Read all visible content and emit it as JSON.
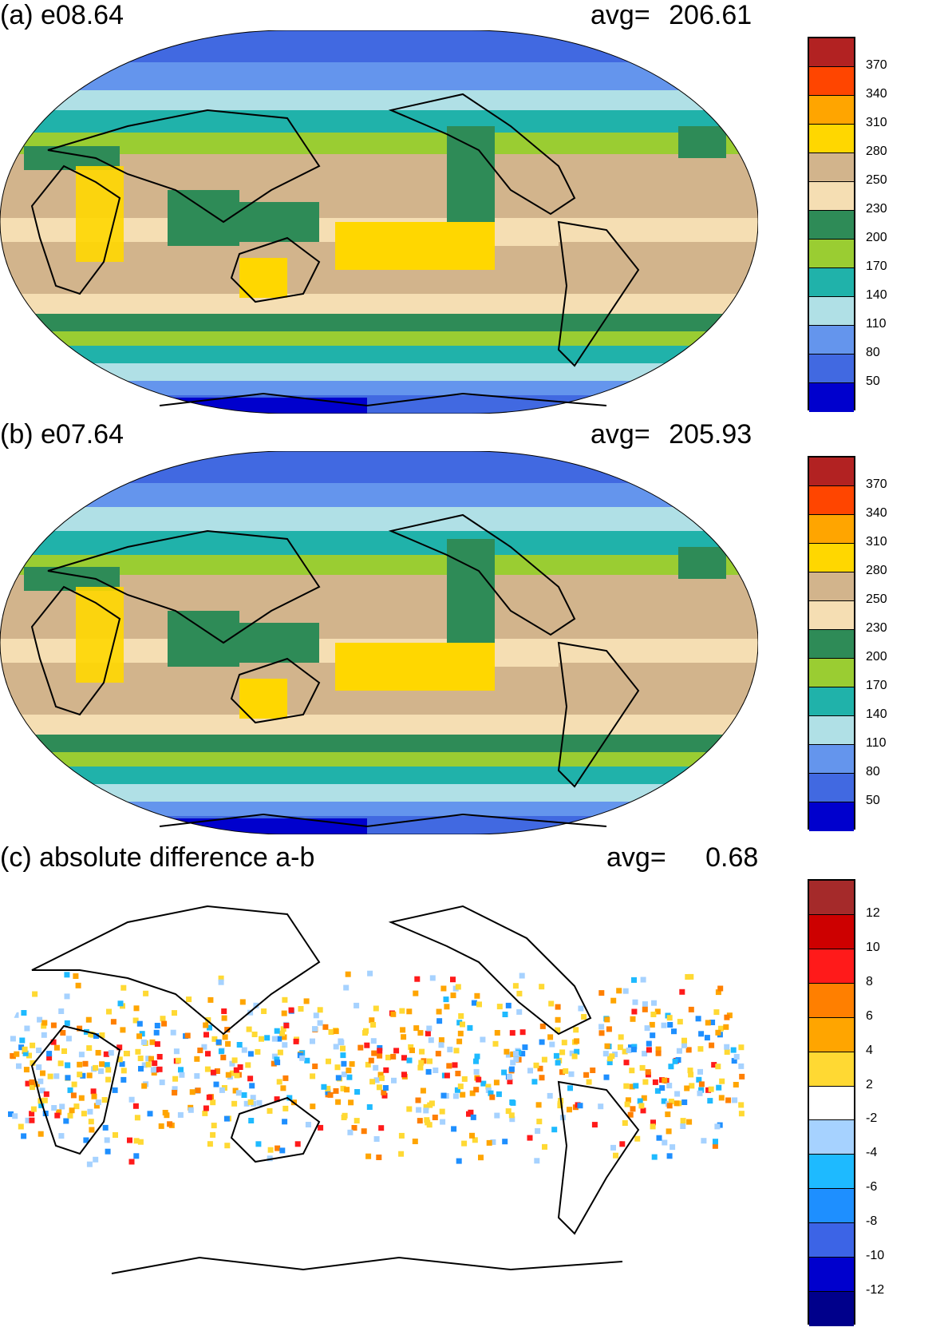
{
  "panels": [
    {
      "id": "a",
      "title": "(a) e08.64",
      "avg_label": "avg=",
      "avg_value": "206.61",
      "colorbar": {
        "colors": [
          "#b22222",
          "#ff4500",
          "#ffa500",
          "#ffd700",
          "#d2b48c",
          "#f5deb3",
          "#2e8b57",
          "#9acd32",
          "#20b2aa",
          "#b0e0e6",
          "#6495ed",
          "#4169e1",
          "#0000cd"
        ],
        "ticks": [
          "370",
          "340",
          "310",
          "280",
          "250",
          "230",
          "200",
          "170",
          "140",
          "110",
          "80",
          "50"
        ]
      }
    },
    {
      "id": "b",
      "title": "(b) e07.64",
      "avg_label": "avg=",
      "avg_value": "205.93",
      "colorbar": {
        "colors": [
          "#b22222",
          "#ff4500",
          "#ffa500",
          "#ffd700",
          "#d2b48c",
          "#f5deb3",
          "#2e8b57",
          "#9acd32",
          "#20b2aa",
          "#b0e0e6",
          "#6495ed",
          "#4169e1",
          "#0000cd"
        ],
        "ticks": [
          "370",
          "340",
          "310",
          "280",
          "250",
          "230",
          "200",
          "170",
          "140",
          "110",
          "80",
          "50"
        ]
      }
    },
    {
      "id": "c",
      "title": "(c) absolute difference a-b",
      "avg_label": "avg=",
      "avg_value": "0.68",
      "colorbar": {
        "colors": [
          "#a52a2a",
          "#cd0000",
          "#ff1a1a",
          "#ff7f00",
          "#ffa500",
          "#ffd933",
          "#ffffff",
          "#a6d2ff",
          "#1ebaff",
          "#1e8fff",
          "#3c64e6",
          "#0000cd",
          "#00008b"
        ],
        "ticks": [
          "12",
          "10",
          "8",
          "6",
          "4",
          "2",
          "-2",
          "-4",
          "-6",
          "-8",
          "-10",
          "-12"
        ]
      }
    }
  ]
}
